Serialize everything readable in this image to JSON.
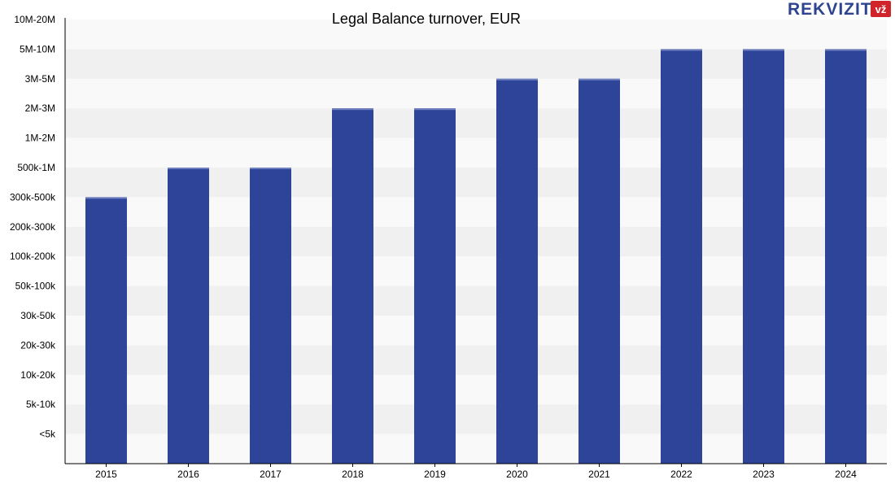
{
  "brand": {
    "name": "REKVIZITAI",
    "badge": "vž"
  },
  "colors": {
    "bar": "#2e4499",
    "bar_top": "#6e7fbf",
    "band_light": "#f9f9f9",
    "band_dark": "#f0f0f0",
    "badge": "#d0232a",
    "axis": "#000000"
  },
  "chart_data": {
    "type": "bar",
    "title": "Legal Balance turnover, EUR",
    "xlabel": "",
    "ylabel": "",
    "y_categories": [
      "<5k",
      "5k-10k",
      "10k-20k",
      "20k-30k",
      "30k-50k",
      "50k-100k",
      "100k-200k",
      "200k-300k",
      "300k-500k",
      "500k-1M",
      "1M-2M",
      "2M-3M",
      "3M-5M",
      "5M-10M",
      "10M-20M"
    ],
    "categories": [
      "2015",
      "2016",
      "2017",
      "2018",
      "2019",
      "2020",
      "2021",
      "2022",
      "2023",
      "2024"
    ],
    "values": [
      "300k-500k",
      "500k-1M",
      "500k-1M",
      "2M-3M",
      "2M-3M",
      "3M-5M",
      "3M-5M",
      "5M-10M",
      "5M-10M",
      "5M-10M"
    ],
    "grid": "alternating horizontal bands",
    "legend": "none"
  }
}
